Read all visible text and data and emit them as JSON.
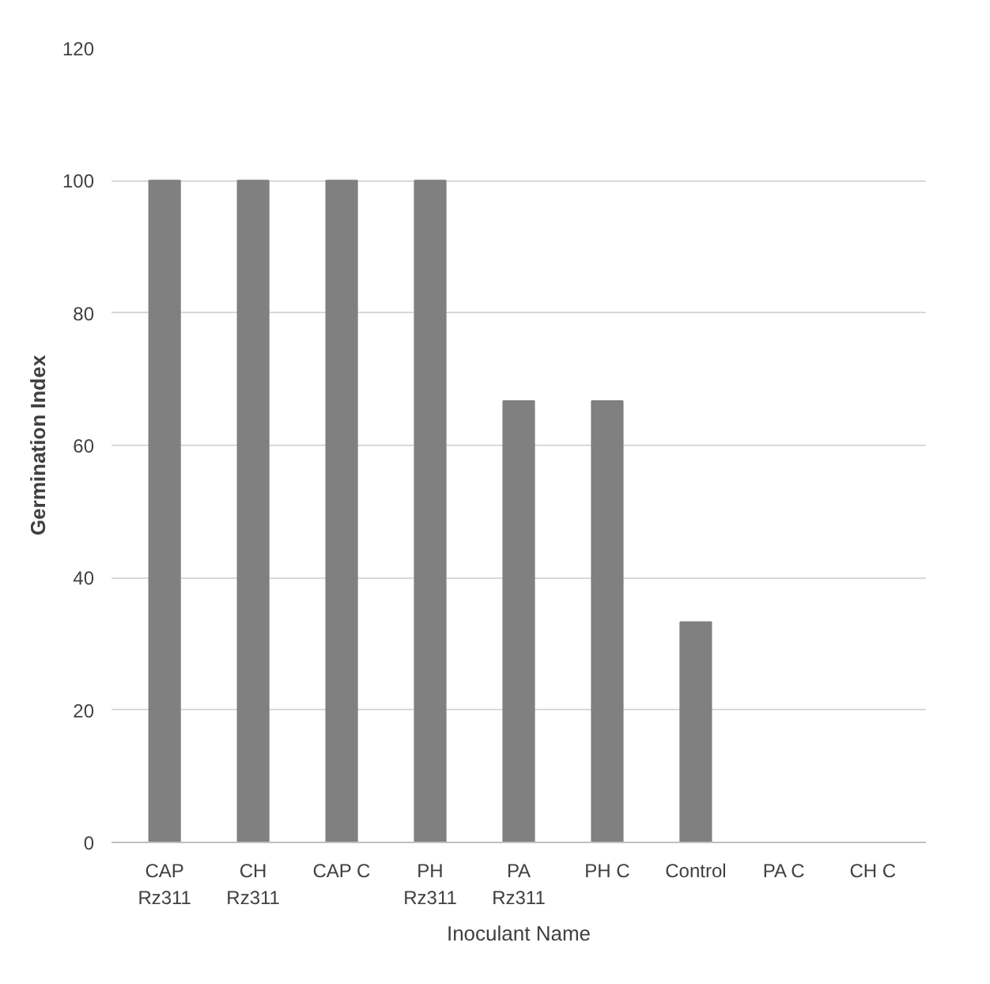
{
  "chart_data": {
    "type": "bar",
    "xlabel": "Inoculant Name",
    "ylabel": "Germination Index",
    "categories": [
      "CAP\nRz311",
      "CH\nRz311",
      "CAP C",
      "PH\nRz311",
      "PA\nRz311",
      "PH C",
      "Control",
      "PA C",
      "CH C"
    ],
    "values": [
      100,
      100,
      100,
      100,
      66.7,
      66.7,
      33.3,
      0,
      0
    ],
    "color": "#808080",
    "ylim": [
      0,
      120
    ],
    "yticks": [
      0,
      20,
      40,
      60,
      80,
      100,
      120
    ],
    "grid": "y"
  }
}
